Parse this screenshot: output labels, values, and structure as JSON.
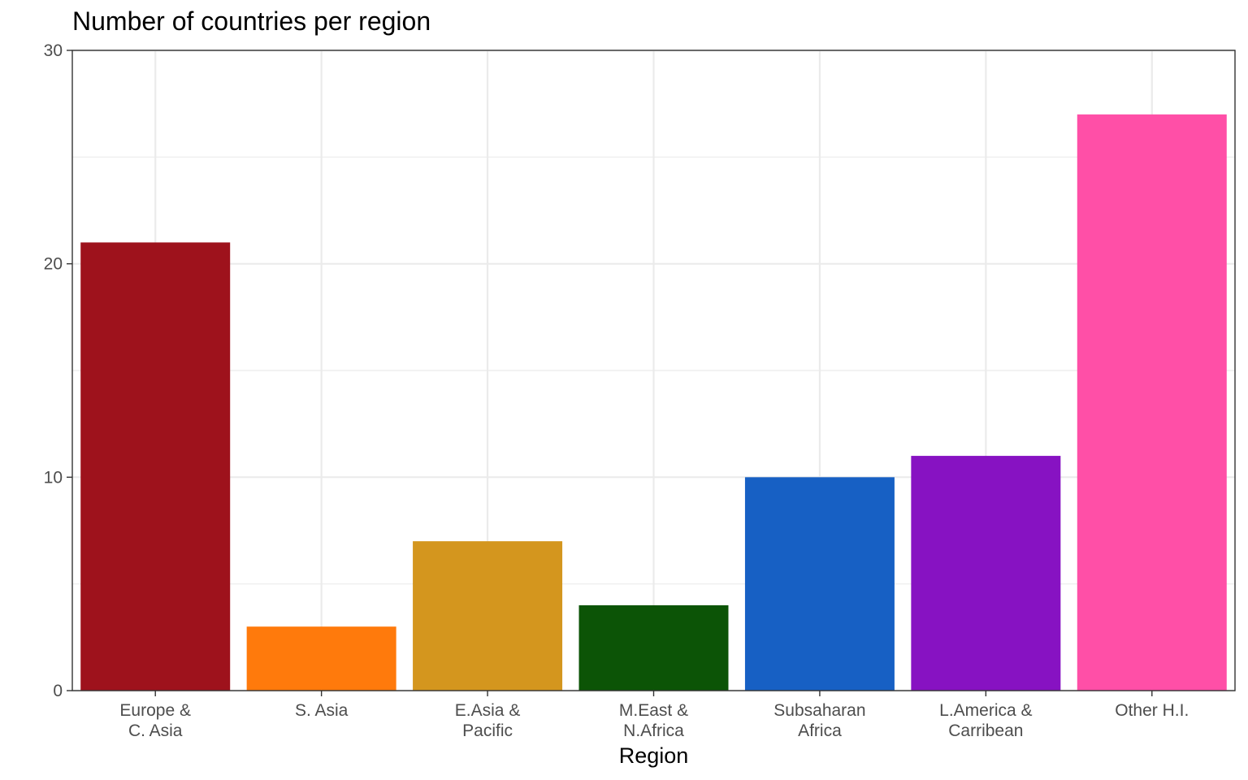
{
  "chart_data": {
    "type": "bar",
    "title": "Number of countries per region",
    "xlabel": "Region",
    "ylabel": "",
    "categories": [
      "Europe &\nC. Asia",
      "S. Asia",
      "E.Asia &\nPacific",
      "M.East &\nN.Africa",
      "Subsaharan\nAfrica",
      "L.America &\nCarribean",
      "Other H.I."
    ],
    "values": [
      21,
      3,
      7,
      4,
      10,
      11,
      27
    ],
    "colors": [
      "#9e121c",
      "#ff7a0c",
      "#d4961e",
      "#0c5406",
      "#1760c4",
      "#8712c2",
      "#ff4fa7"
    ],
    "ylim": [
      0,
      30
    ],
    "yticks": [
      0,
      10,
      20,
      30
    ],
    "grid": true,
    "legend": "none"
  }
}
